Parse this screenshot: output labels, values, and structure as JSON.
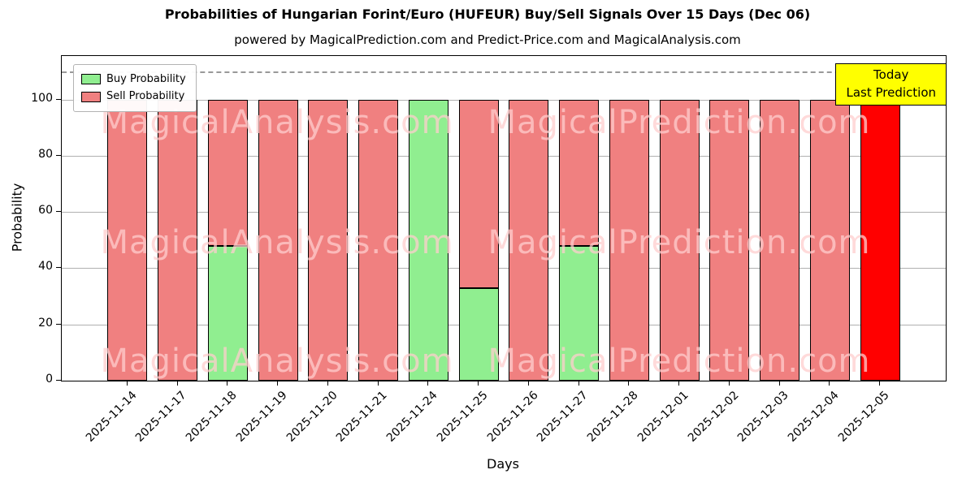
{
  "chart_data": {
    "type": "bar",
    "stacked": true,
    "title": "Probabilities of Hungarian Forint/Euro (HUFEUR) Buy/Sell Signals Over 15 Days (Dec 06)",
    "subtitle": "powered by MagicalPrediction.com and Predict-Price.com and MagicalAnalysis.com",
    "xlabel": "Days",
    "ylabel": "Probability",
    "ylim": [
      0,
      115.5
    ],
    "yticks": [
      0,
      20,
      40,
      60,
      80,
      100
    ],
    "grid": true,
    "legend_position": "upper-left",
    "categories": [
      "2025-11-14",
      "2025-11-17",
      "2025-11-18",
      "2025-11-19",
      "2025-11-20",
      "2025-11-21",
      "2025-11-24",
      "2025-11-25",
      "2025-11-26",
      "2025-11-27",
      "2025-11-28",
      "2025-12-01",
      "2025-12-02",
      "2025-12-03",
      "2025-12-04",
      "2025-12-05"
    ],
    "series": [
      {
        "name": "Buy Probability",
        "color": "#90ee90",
        "values": [
          0,
          0,
          48,
          0,
          0,
          0,
          100,
          33,
          0,
          48,
          0,
          0,
          0,
          0,
          0,
          0
        ]
      },
      {
        "name": "Sell Probability",
        "color": "#f08080",
        "values": [
          100,
          100,
          52,
          100,
          100,
          100,
          0,
          67,
          100,
          52,
          100,
          100,
          100,
          100,
          100,
          100
        ]
      }
    ],
    "today_index": 15,
    "today_color": "#ff0000",
    "dashed_line_y": 110,
    "dashed_line_color": "#999999",
    "annotation": {
      "line1": "Today",
      "line2": "Last Prediction",
      "bg": "#ffff00"
    },
    "watermarks": [
      "MagicalAnalysis.com",
      "MagicalPrediction.com"
    ],
    "grid_color": "#b0b0b0",
    "bar_edge_color": "#000000"
  }
}
